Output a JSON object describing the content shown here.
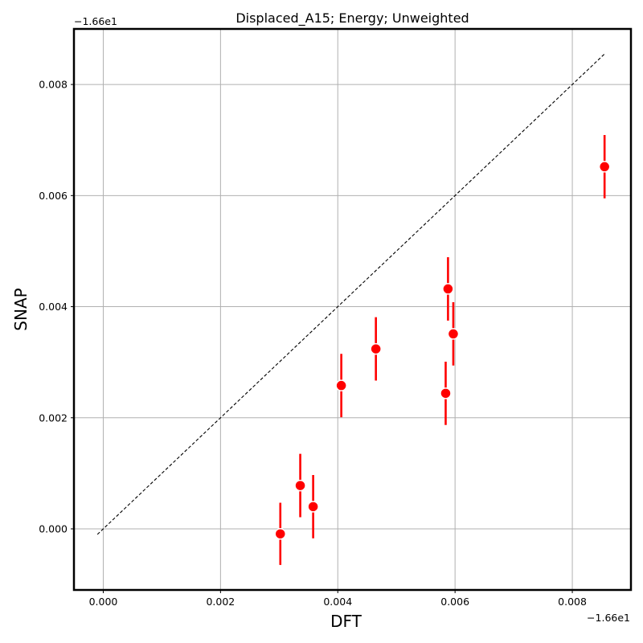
{
  "chart_data": {
    "type": "scatter",
    "title": "Displaced_A15; Energy; Unweighted",
    "xlabel": "DFT",
    "ylabel": "SNAP",
    "x_offset_label": "−1.66e1",
    "y_offset_label": "−1.66e1",
    "xlim": [
      -0.0005,
      0.009
    ],
    "ylim": [
      -0.0011,
      0.009
    ],
    "xticks": [
      0.0,
      0.002,
      0.004,
      0.006,
      0.008
    ],
    "xtick_labels": [
      "0.000",
      "0.002",
      "0.004",
      "0.006",
      "0.008"
    ],
    "yticks": [
      0.0,
      0.002,
      0.004,
      0.006,
      0.008
    ],
    "ytick_labels": [
      "0.000",
      "0.002",
      "0.004",
      "0.006",
      "0.008"
    ],
    "grid": true,
    "reference_line": {
      "x": [
        -0.0001,
        0.00855
      ],
      "y": [
        -0.0001,
        0.00855
      ],
      "style": "dashed",
      "color": "#000000"
    },
    "marker_color": "#ff0000",
    "errorbar_color": "#ff0000",
    "points": [
      {
        "x": 0.00302,
        "y": -9e-05,
        "err": 0.00056
      },
      {
        "x": 0.00336,
        "y": 0.00078,
        "err": 0.00057
      },
      {
        "x": 0.00358,
        "y": 0.0004,
        "err": 0.00057
      },
      {
        "x": 0.00406,
        "y": 0.00258,
        "err": 0.00057
      },
      {
        "x": 0.00465,
        "y": 0.00324,
        "err": 0.00057
      },
      {
        "x": 0.00584,
        "y": 0.00244,
        "err": 0.00057
      },
      {
        "x": 0.00588,
        "y": 0.00432,
        "err": 0.00057
      },
      {
        "x": 0.00597,
        "y": 0.00351,
        "err": 0.00057
      },
      {
        "x": 0.00855,
        "y": 0.00652,
        "err": 0.00057
      }
    ]
  }
}
